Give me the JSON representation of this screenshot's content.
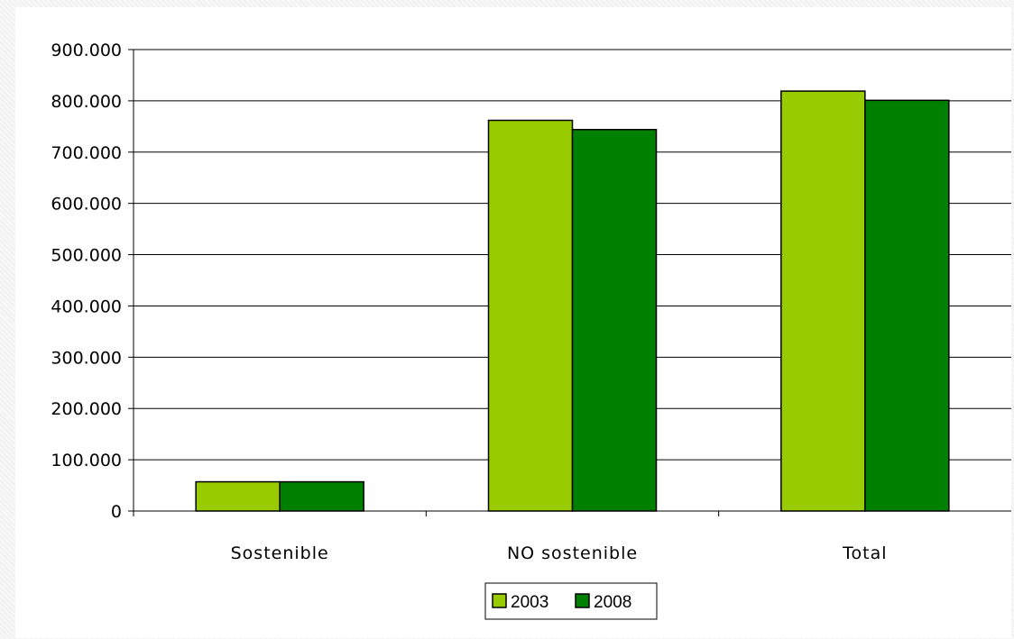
{
  "chart_data": {
    "type": "bar",
    "title": "",
    "xlabel": "",
    "ylabel": "",
    "categories": [
      "Sostenible",
      "NO sostenible",
      "Total"
    ],
    "series": [
      {
        "name": "2003",
        "color": "#99cc00",
        "values": [
          57000,
          762000,
          819000
        ]
      },
      {
        "name": "2008",
        "color": "#008000",
        "values": [
          57000,
          744000,
          801000
        ]
      }
    ],
    "ylim": [
      0,
      900000
    ],
    "yticks": [
      0,
      100000,
      200000,
      300000,
      400000,
      500000,
      600000,
      700000,
      800000,
      900000
    ],
    "ytick_labels": [
      "0",
      "100.000",
      "200.000",
      "300.000",
      "400.000",
      "500.000",
      "600.000",
      "700.000",
      "800.000",
      "900.000"
    ],
    "grid": true,
    "legend": "bottom-center"
  }
}
